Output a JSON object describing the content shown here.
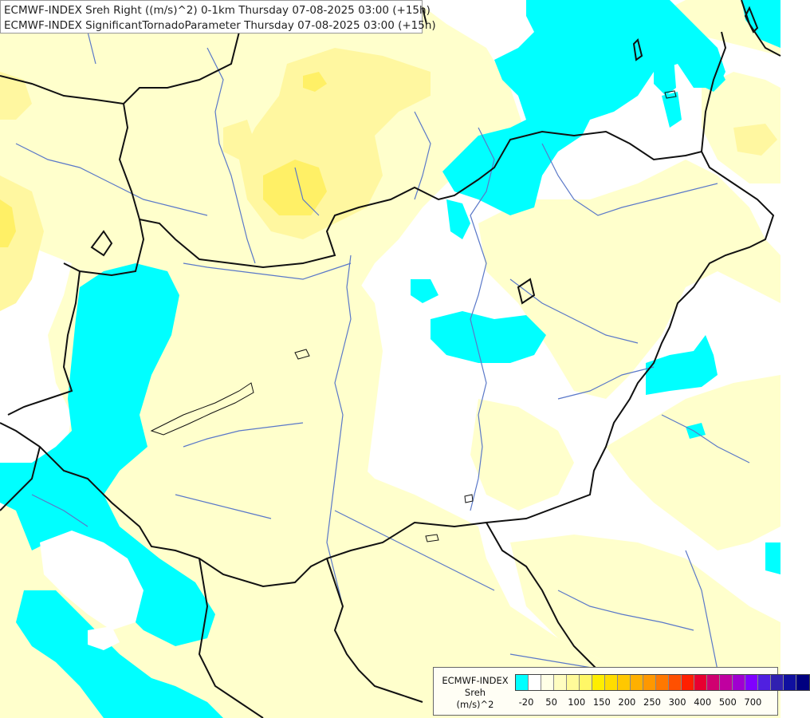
{
  "titles": {
    "line1": "ECMWF-INDEX Sreh Right ((m/s)^2) 0-1km Thursday 07-08-2025 03:00 (+15h)",
    "line2": "ECMWF-INDEX SignificantTornadoParameter Thursday 07-08-2025 03:00 (+15h)"
  },
  "legend": {
    "source": "ECMWF-INDEX",
    "variable": "Sreh",
    "unit": "(m/s)^2",
    "colors": [
      "#00ffff",
      "#ffffff",
      "#ffffe6",
      "#fffdc0",
      "#fffa99",
      "#fff766",
      "#ffee00",
      "#ffdd00",
      "#ffc800",
      "#ffb000",
      "#ff9800",
      "#ff7800",
      "#ff5000",
      "#ff2000",
      "#e80030",
      "#d00070",
      "#c000a0",
      "#a000d0",
      "#8000ff",
      "#5020e0",
      "#3020b0",
      "#1010a0",
      "#000080"
    ],
    "ticks": [
      {
        "label": "-20",
        "index": 0.5
      },
      {
        "label": "50",
        "index": 2.5
      },
      {
        "label": "100",
        "index": 4.5
      },
      {
        "label": "150",
        "index": 6.5
      },
      {
        "label": "200",
        "index": 8.5
      },
      {
        "label": "250",
        "index": 10.5
      },
      {
        "label": "300",
        "index": 12.5
      },
      {
        "label": "400",
        "index": 14.5
      },
      {
        "label": "500",
        "index": 16.5
      },
      {
        "label": "700",
        "index": 18.5
      }
    ]
  },
  "map_colors": {
    "background": "#ffffff",
    "pale_yellow": "#ffffcc",
    "light_yellow": "#fffaa0",
    "yellow": "#fff066",
    "cyan": "#00ffff",
    "border": "#111111",
    "river": "#5a78c8"
  }
}
